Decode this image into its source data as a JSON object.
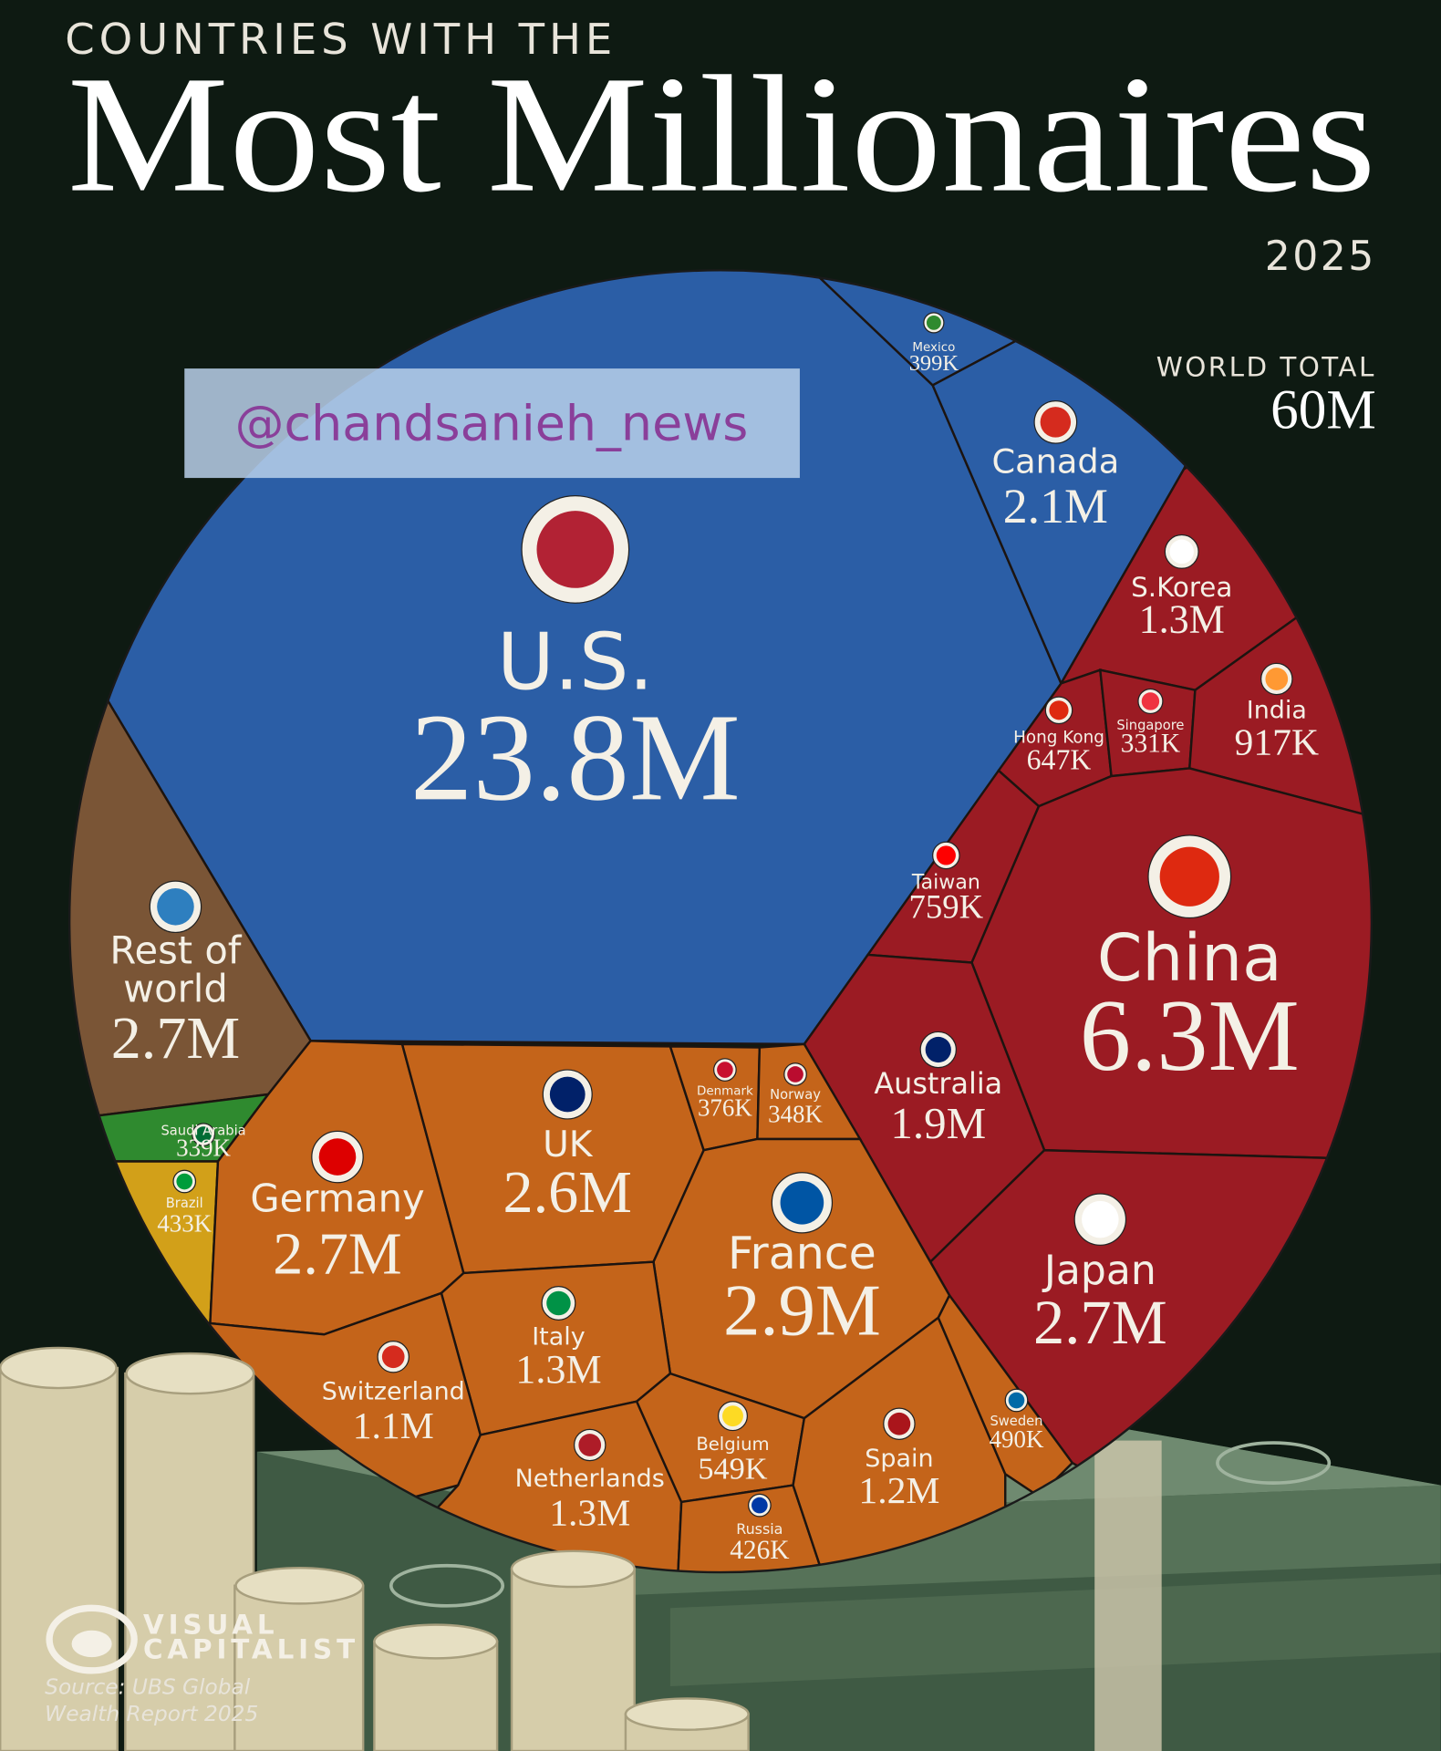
{
  "chart_data": {
    "type": "treemap",
    "subtitle": "COUNTRIES WITH THE",
    "title": "Most Millionaires",
    "year": "2025",
    "world_total_label": "WORLD TOTAL",
    "world_total": "60M",
    "watermark": "@chandsanieh_news",
    "logo": [
      "VISUAL",
      "CAPITALIST"
    ],
    "source": "Source: UBS Global Wealth Report 2025",
    "categories": [
      "U.S.",
      "Mexico",
      "Canada",
      "S.Korea",
      "Hong Kong",
      "Singapore",
      "India",
      "Taiwan",
      "China",
      "Australia",
      "Japan",
      "Rest of world",
      "Saudi Arabia",
      "Brazil",
      "Germany",
      "UK",
      "Denmark",
      "Norway",
      "France",
      "Italy",
      "Switzerland",
      "Netherlands",
      "Belgium",
      "Russia",
      "Spain",
      "Sweden"
    ],
    "values": [
      23800000,
      399000,
      2100000,
      1300000,
      647000,
      331000,
      917000,
      759000,
      6300000,
      1900000,
      2700000,
      2700000,
      339000,
      433000,
      2700000,
      2600000,
      376000,
      348000,
      2900000,
      1300000,
      1100000,
      1300000,
      549000,
      426000,
      1200000,
      490000
    ],
    "value_labels": [
      "23.8M",
      "399K",
      "2.1M",
      "1.3M",
      "647K",
      "331K",
      "917K",
      "759K",
      "6.3M",
      "1.9M",
      "2.7M",
      "2.7M",
      "339K",
      "433K",
      "2.7M",
      "2.6M",
      "376K",
      "348K",
      "2.9M",
      "1.3M",
      "1.1M",
      "1.3M",
      "549K",
      "426K",
      "1.2M",
      "490K"
    ],
    "colors": [
      "#2b5ea6",
      "#2b5ea6",
      "#2b5ea6",
      "#9b1b23",
      "#9b1b23",
      "#9b1b23",
      "#9b1b23",
      "#9b1b23",
      "#9b1b23",
      "#9b1b23",
      "#9b1b23",
      "#7a5536",
      "#2f8a2f",
      "#d2a019",
      "#c4641a",
      "#c4641a",
      "#c4641a",
      "#c4641a",
      "#c4641a",
      "#c4641a",
      "#c4641a",
      "#c4641a",
      "#c4641a",
      "#c4641a",
      "#c4641a",
      "#c4641a"
    ]
  }
}
